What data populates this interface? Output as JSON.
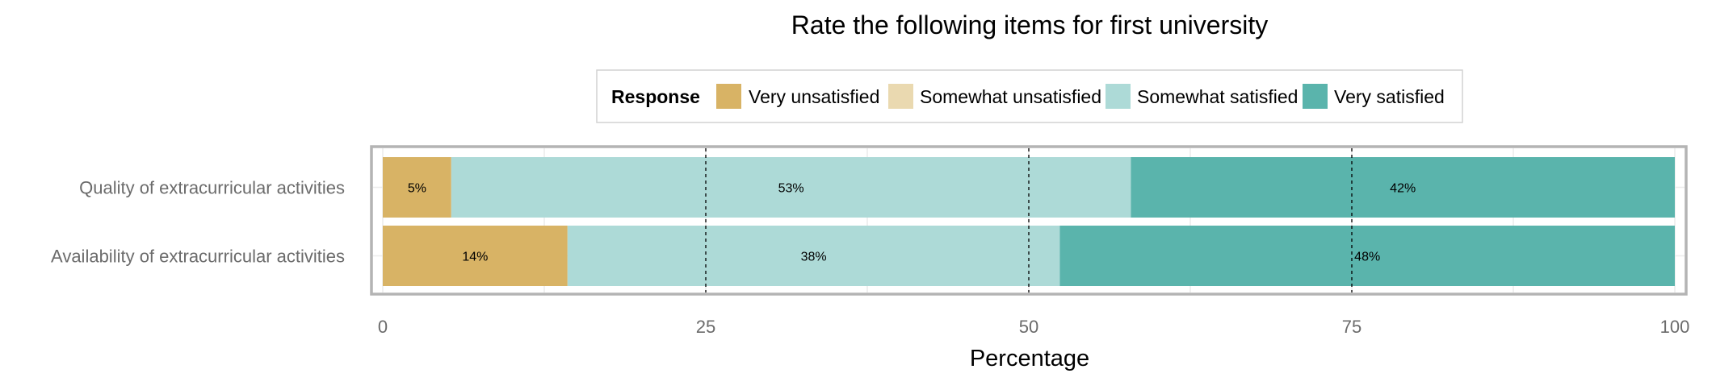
{
  "chart_data": {
    "type": "bar",
    "orientation": "horizontal",
    "stacked": true,
    "title": "Rate the following items for first university",
    "xlabel": "Percentage",
    "ylabel": "",
    "xlim": [
      0,
      100
    ],
    "xticks": [
      "0",
      "25",
      "50",
      "75",
      "100"
    ],
    "categories": [
      "Quality of extracurricular activities",
      "Availability of extracurricular activities"
    ],
    "legend": {
      "title": "Response",
      "position": "top",
      "entries": [
        "Very unsatisfied",
        "Somewhat unsatisfied",
        "Somewhat satisfied",
        "Very satisfied"
      ]
    },
    "series": [
      {
        "name": "Very unsatisfied",
        "color": "#D8B365",
        "values": [
          5.3,
          14.3
        ],
        "labels": [
          "5%",
          "14%"
        ]
      },
      {
        "name": "Somewhat unsatisfied",
        "color": "#EAD9B0",
        "values": [
          0,
          0
        ],
        "labels": [
          "",
          ""
        ]
      },
      {
        "name": "Somewhat satisfied",
        "color": "#ADDAD7",
        "values": [
          52.6,
          38.1
        ],
        "labels": [
          "53%",
          "38%"
        ]
      },
      {
        "name": "Very satisfied",
        "color": "#5AB4AC",
        "values": [
          42.1,
          47.6
        ],
        "labels": [
          "42%",
          "48%"
        ]
      }
    ],
    "reference_lines": [
      25,
      50,
      75
    ],
    "grid": true
  }
}
